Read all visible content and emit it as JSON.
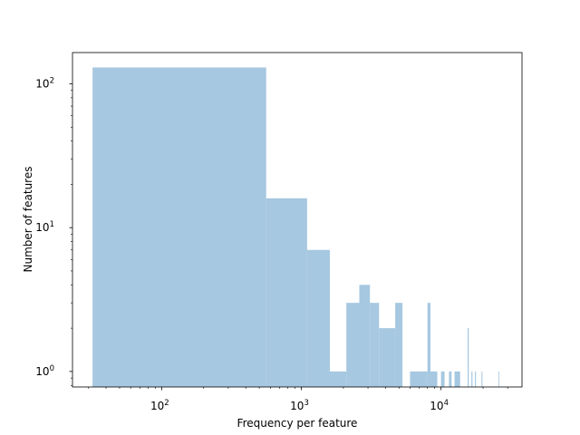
{
  "chart_data": {
    "type": "bar",
    "title": "",
    "xlabel": "Frequency per feature",
    "ylabel": "Number of features",
    "x_scale": "log",
    "y_scale": "log",
    "xlim": [
      23,
      38000
    ],
    "ylim": [
      0.78,
      165
    ],
    "x_ticks": [
      {
        "value": 100,
        "base": "10",
        "exp": "2"
      },
      {
        "value": 1000,
        "base": "10",
        "exp": "3"
      },
      {
        "value": 10000,
        "base": "10",
        "exp": "4"
      }
    ],
    "y_ticks": [
      {
        "value": 1,
        "base": "10",
        "exp": "0"
      },
      {
        "value": 10,
        "base": "10",
        "exp": "1"
      },
      {
        "value": 100,
        "base": "10",
        "exp": "2"
      }
    ],
    "bar_color": "#a6c8e0",
    "grid": false,
    "bins": [
      {
        "x0": 32,
        "x1": 560,
        "count": 130
      },
      {
        "x0": 560,
        "x1": 1100,
        "count": 16
      },
      {
        "x0": 1100,
        "x1": 1600,
        "count": 7
      },
      {
        "x0": 1600,
        "x1": 2100,
        "count": 1
      },
      {
        "x0": 2100,
        "x1": 2600,
        "count": 3
      },
      {
        "x0": 2600,
        "x1": 3100,
        "count": 4
      },
      {
        "x0": 3100,
        "x1": 3600,
        "count": 3
      },
      {
        "x0": 3600,
        "x1": 4700,
        "count": 2
      },
      {
        "x0": 4700,
        "x1": 5300,
        "count": 3
      },
      {
        "x0": 6000,
        "x1": 8000,
        "count": 1
      },
      {
        "x0": 8000,
        "x1": 8400,
        "count": 3
      },
      {
        "x0": 8400,
        "x1": 9400,
        "count": 1
      },
      {
        "x0": 10000,
        "x1": 10600,
        "count": 1
      },
      {
        "x0": 11400,
        "x1": 11900,
        "count": 1
      },
      {
        "x0": 12500,
        "x1": 13700,
        "count": 1
      },
      {
        "x0": 15500,
        "x1": 15800,
        "count": 2
      },
      {
        "x0": 16500,
        "x1": 16800,
        "count": 1
      },
      {
        "x0": 17500,
        "x1": 17800,
        "count": 1
      },
      {
        "x0": 19500,
        "x1": 19800,
        "count": 1
      },
      {
        "x0": 25800,
        "x1": 26100,
        "count": 1
      }
    ]
  }
}
